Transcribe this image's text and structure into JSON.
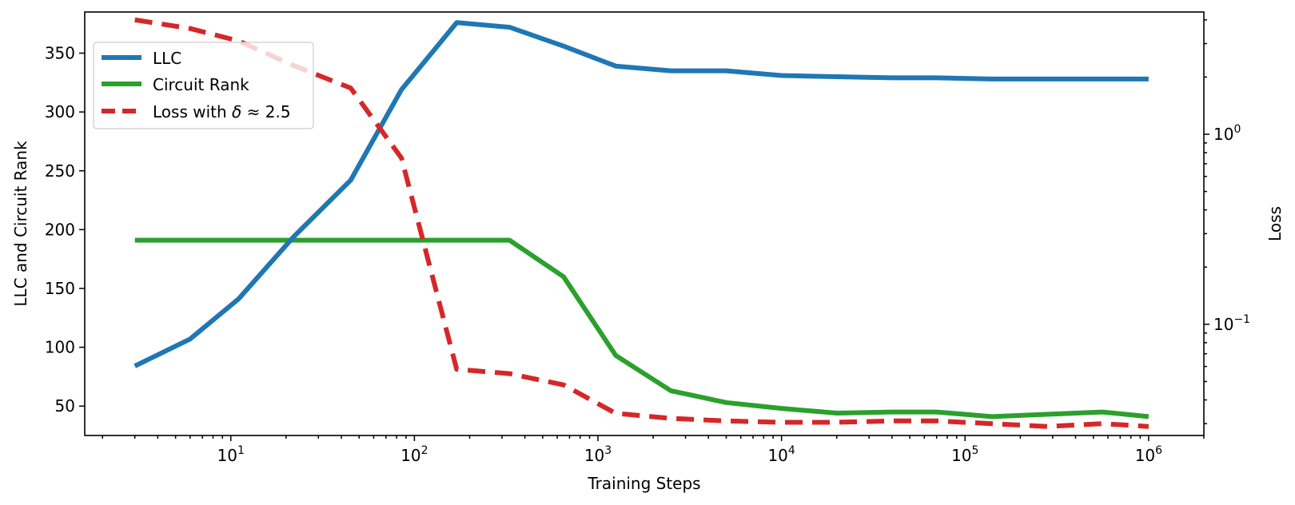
{
  "chart_data": {
    "type": "line",
    "title": "",
    "xlabel": "Training Steps",
    "ylabel": "LLC and Circuit Rank",
    "ylabel_right": "Loss",
    "xscale": "log",
    "xlim": [
      1.6,
      2000000
    ],
    "ylim": [
      25,
      385
    ],
    "yscale_right": "log",
    "ylim_right": [
      0.026,
      4.4
    ],
    "x_tick_labels": [
      "10",
      "10",
      "10",
      "10",
      "10",
      "10"
    ],
    "x_tick_exponents": [
      "1",
      "2",
      "3",
      "4",
      "5",
      "6"
    ],
    "y_tick_labels": [
      "50",
      "100",
      "150",
      "200",
      "250",
      "300",
      "350"
    ],
    "y_right_tick_labels": [
      "10",
      "10"
    ],
    "y_right_tick_exponents": [
      "−1",
      "0"
    ],
    "grid": false,
    "legend_position": "upper-left",
    "legend": {
      "llc": "LLC",
      "circuit_rank": "Circuit Rank",
      "loss_prefix": "Loss with ",
      "loss_delta": "δ",
      "loss_suffix": " ≈ 2.5"
    },
    "series": [
      {
        "name": "LLC",
        "axis": "left",
        "color": "#1f77b4",
        "style": "solid",
        "x": [
          3,
          6,
          11,
          22,
          45,
          85,
          170,
          330,
          650,
          1250,
          2500,
          5000,
          10000,
          20000,
          40000,
          70000,
          140000,
          280000,
          560000,
          1000000
        ],
        "y": [
          84,
          107,
          141,
          194,
          242,
          319,
          376,
          372,
          356,
          339,
          335,
          335,
          331,
          330,
          329,
          329,
          328,
          328,
          328,
          328
        ]
      },
      {
        "name": "Circuit Rank",
        "axis": "left",
        "color": "#2ca02c",
        "style": "solid",
        "x": [
          3,
          6,
          11,
          22,
          45,
          85,
          170,
          330,
          650,
          1250,
          2500,
          5000,
          10000,
          20000,
          40000,
          70000,
          140000,
          280000,
          560000,
          1000000
        ],
        "y": [
          191,
          191,
          191,
          191,
          191,
          191,
          191,
          191,
          160,
          93,
          63,
          53,
          48,
          44,
          45,
          45,
          41,
          43,
          45,
          41
        ]
      },
      {
        "name": "Loss with δ ≈ 2.5",
        "axis": "right",
        "color": "#d62728",
        "style": "dashed",
        "x": [
          3,
          6,
          11,
          22,
          45,
          85,
          170,
          330,
          650,
          1250,
          2500,
          5000,
          10000,
          20000,
          40000,
          70000,
          140000,
          280000,
          560000,
          1000000
        ],
        "y": [
          4.0,
          3.6,
          3.1,
          2.3,
          1.75,
          0.75,
          0.058,
          0.055,
          0.048,
          0.034,
          0.032,
          0.031,
          0.0305,
          0.0305,
          0.031,
          0.031,
          0.03,
          0.029,
          0.03,
          0.029
        ]
      }
    ]
  }
}
